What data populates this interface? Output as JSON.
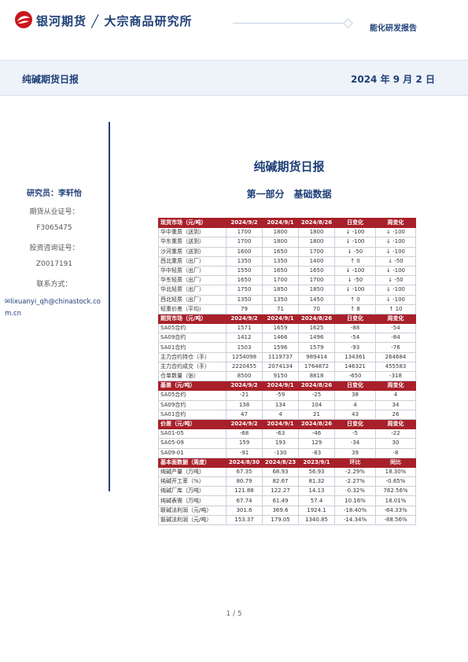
{
  "header": {
    "brand": "银河期货 ╱ 大宗商品研究所",
    "report_type": "能化研发报告"
  },
  "band": {
    "title": "纯碱期货日报",
    "date": "2024 年 9 月 2 日"
  },
  "sidebar": {
    "researcher": "研究员：李轩怡",
    "qual_label": "期货从业证号：",
    "qual_no": "F3065475",
    "invest_label": "投资咨询证号：",
    "invest_no": "Z0017191",
    "contact_label": "联系方式：",
    "email": "lixuanyi_qh@chinastock.com.cn"
  },
  "main": {
    "title": "纯碱期货日报",
    "part": "第一部分　基础数据"
  },
  "table": {
    "sections": [
      {
        "header": [
          "现货市场（元/吨）",
          "2024/9/2",
          "2024/9/1",
          "2024/8/26",
          "日变化",
          "周变化"
        ],
        "rows": [
          [
            "华中重质（送到）",
            "1700",
            "1800",
            "1800",
            "↓ -100",
            "↓ -100"
          ],
          [
            "华东重质（送到）",
            "1700",
            "1800",
            "1800",
            "↓ -100",
            "↓ -100"
          ],
          [
            "沙河重质（送到）",
            "1600",
            "1650",
            "1700",
            "↓ -50",
            "↓ -100"
          ],
          [
            "西北重质（出厂）",
            "1350",
            "1350",
            "1400",
            "↑ 0",
            "↓ -50"
          ],
          [
            "华中轻质（出厂）",
            "1550",
            "1650",
            "1650",
            "↓ -100",
            "↓ -100"
          ],
          [
            "华东轻质（出厂）",
            "1650",
            "1700",
            "1700",
            "↓ -50",
            "↓ -50"
          ],
          [
            "华北轻质（出厂）",
            "1750",
            "1850",
            "1850",
            "↓ -100",
            "↓ -100"
          ],
          [
            "西北轻质（出厂）",
            "1350",
            "1350",
            "1450",
            "↑ 0",
            "↓ -100"
          ],
          [
            "轻重价差（平均）",
            "79",
            "71",
            "70",
            "↑ 8",
            "↑ 10"
          ]
        ]
      },
      {
        "header": [
          "期货市场（元/吨）",
          "2024/9/2",
          "2024/9/1",
          "2024/8/26",
          "日变化",
          "周变化"
        ],
        "rows": [
          [
            "SA05合约",
            "1571",
            "1659",
            "1625",
            "-88",
            "-54"
          ],
          [
            "SA09合约",
            "1412",
            "1466",
            "1496",
            "-54",
            "-84"
          ],
          [
            "SA01合约",
            "1503",
            "1596",
            "1579",
            "-93",
            "-76"
          ],
          [
            "主力合约持仓（手）",
            "1254098",
            "1119737",
            "989414",
            "134361",
            "264684"
          ],
          [
            "主力合约成交（手）",
            "2220455",
            "2074134",
            "1764872",
            "146321",
            "455583"
          ],
          [
            "仓单数量（张）",
            "8500",
            "9150",
            "8818",
            "-650",
            "-318"
          ]
        ]
      },
      {
        "header": [
          "基差（元/吨）",
          "2024/9/2",
          "2024/9/1",
          "2024/8/26",
          "日变化",
          "周变化"
        ],
        "rows": [
          [
            "SA05合约",
            "-21",
            "-59",
            "-25",
            "38",
            "4"
          ],
          [
            "SA09合约",
            "138",
            "134",
            "104",
            "4",
            "34"
          ],
          [
            "SA01合约",
            "47",
            "4",
            "21",
            "43",
            "26"
          ]
        ]
      },
      {
        "header": [
          "价差（元/吨）",
          "2024/9/2",
          "2024/9/1",
          "2024/8/26",
          "日变化",
          "周变化"
        ],
        "rows": [
          [
            "SA01-05",
            "-68",
            "-63",
            "-46",
            "-5",
            "-22"
          ],
          [
            "SA05-09",
            "159",
            "193",
            "129",
            "-34",
            "30"
          ],
          [
            "SA09-01",
            "-91",
            "-130",
            "-83",
            "39",
            "-8"
          ]
        ]
      },
      {
        "header": [
          "基本面数据（周度）",
          "2024/8/30",
          "2024/8/23",
          "2023/9/1",
          "环比",
          "同比"
        ],
        "rows": [
          [
            "纯碱产量（万吨）",
            "67.35",
            "68.93",
            "56.93",
            "-2.29%",
            "18.30%"
          ],
          [
            "纯碱开工率（%）",
            "80.79",
            "82.67",
            "81.32",
            "-2.27%",
            "-0.65%"
          ],
          [
            "纯碱厂库（万吨）",
            "121.88",
            "122.27",
            "14.13",
            "-0.32%",
            "762.56%"
          ],
          [
            "纯碱表需（万吨）",
            "67.74",
            "61.49",
            "57.4",
            "10.16%",
            "18.01%"
          ],
          [
            "联碱法利润（元/吨）",
            "301.6",
            "369.6",
            "1924.1",
            "-18.40%",
            "-84.33%"
          ],
          [
            "氨碱法利润（元/吨）",
            "153.37",
            "179.05",
            "1340.85",
            "-14.34%",
            "-88.56%"
          ]
        ]
      }
    ]
  },
  "footer": {
    "page": "1 / 5"
  }
}
